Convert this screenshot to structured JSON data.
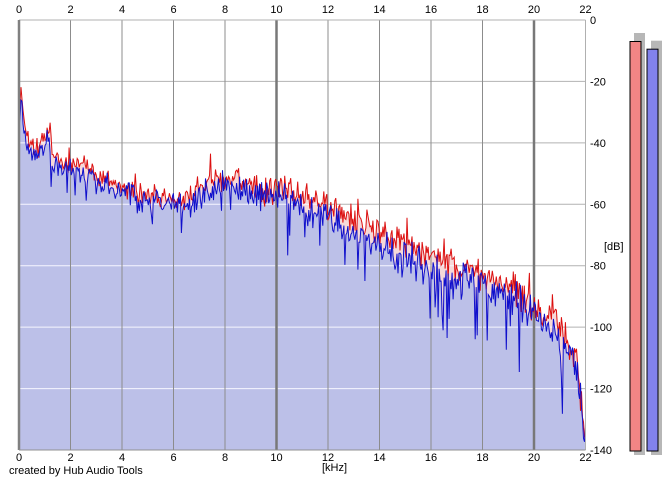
{
  "window": {
    "creator_text": "created by Hub Audio Tools"
  },
  "chart_data": {
    "type": "area",
    "title": "",
    "xlabel": "[kHz]",
    "ylabel": "[dB]",
    "xlim": [
      0,
      22
    ],
    "ylim": [
      -140,
      0
    ],
    "x_ticks": [
      0,
      2,
      4,
      6,
      8,
      10,
      12,
      14,
      16,
      18,
      20,
      22
    ],
    "x_major_ticks": [
      0,
      10,
      20
    ],
    "y_ticks": [
      0,
      -20,
      -40,
      -60,
      -80,
      -100,
      -120,
      -140
    ],
    "grid": true,
    "legend": "none",
    "points_count": 566,
    "series": [
      {
        "name": "spectrum-left-channel",
        "line_color": "#dc1010",
        "fill_color": "#f6d9d9",
        "jitter_db": 5.5,
        "noise_seed": 21,
        "envelope_points_khz_db": [
          [
            0.0,
            -30
          ],
          [
            0.08,
            -22.5
          ],
          [
            0.2,
            -33
          ],
          [
            0.4,
            -40
          ],
          [
            0.7,
            -43
          ],
          [
            0.9,
            -39
          ],
          [
            1.1,
            -36
          ],
          [
            1.3,
            -44
          ],
          [
            1.7,
            -46
          ],
          [
            2.0,
            -48
          ],
          [
            2.6,
            -47
          ],
          [
            3.2,
            -52
          ],
          [
            4.0,
            -54
          ],
          [
            4.8,
            -57
          ],
          [
            5.4,
            -57
          ],
          [
            6.2,
            -59
          ],
          [
            7.0,
            -55
          ],
          [
            7.6,
            -52
          ],
          [
            8.3,
            -51
          ],
          [
            9.0,
            -54
          ],
          [
            9.6,
            -56
          ],
          [
            10.3,
            -55
          ],
          [
            10.9,
            -57
          ],
          [
            11.5,
            -59
          ],
          [
            12.0,
            -61
          ],
          [
            12.6,
            -63
          ],
          [
            13.3,
            -66
          ],
          [
            14.0,
            -69
          ],
          [
            14.7,
            -72
          ],
          [
            15.4,
            -74
          ],
          [
            16.0,
            -77
          ],
          [
            16.6,
            -79
          ],
          [
            17.3,
            -81
          ],
          [
            18.0,
            -83
          ],
          [
            18.6,
            -85
          ],
          [
            19.2,
            -88
          ],
          [
            19.8,
            -92
          ],
          [
            20.4,
            -96
          ],
          [
            20.9,
            -99
          ],
          [
            21.3,
            -104
          ],
          [
            21.6,
            -111
          ],
          [
            21.8,
            -121
          ],
          [
            21.95,
            -133
          ],
          [
            22.0,
            -135
          ]
        ]
      },
      {
        "name": "spectrum-right-channel",
        "line_color": "#1010cc",
        "fill_color": "#bcc0e8",
        "jitter_db": 6.5,
        "noise_seed": 77,
        "envelope_points_khz_db": [
          [
            0.0,
            -33
          ],
          [
            0.08,
            -26
          ],
          [
            0.2,
            -35
          ],
          [
            0.4,
            -42
          ],
          [
            0.7,
            -45
          ],
          [
            0.9,
            -41
          ],
          [
            1.1,
            -38
          ],
          [
            1.3,
            -46
          ],
          [
            1.7,
            -48
          ],
          [
            2.0,
            -50
          ],
          [
            2.6,
            -49
          ],
          [
            3.2,
            -54
          ],
          [
            4.0,
            -56
          ],
          [
            4.8,
            -59
          ],
          [
            5.4,
            -59
          ],
          [
            6.2,
            -61
          ],
          [
            7.0,
            -57
          ],
          [
            7.6,
            -55
          ],
          [
            8.3,
            -54
          ],
          [
            9.0,
            -56
          ],
          [
            9.6,
            -58
          ],
          [
            10.3,
            -58
          ],
          [
            10.9,
            -60
          ],
          [
            11.5,
            -63
          ],
          [
            12.0,
            -65
          ],
          [
            12.6,
            -68
          ],
          [
            13.3,
            -71
          ],
          [
            14.0,
            -74
          ],
          [
            14.7,
            -77
          ],
          [
            15.4,
            -79
          ],
          [
            16.0,
            -82
          ],
          [
            16.6,
            -84
          ],
          [
            17.3,
            -85
          ],
          [
            18.0,
            -87
          ],
          [
            18.6,
            -88
          ],
          [
            19.2,
            -91
          ],
          [
            19.8,
            -95
          ],
          [
            20.4,
            -99
          ],
          [
            20.9,
            -102
          ],
          [
            21.3,
            -107
          ],
          [
            21.6,
            -114
          ],
          [
            21.8,
            -125
          ],
          [
            21.95,
            -137
          ],
          [
            22.0,
            -138
          ]
        ]
      }
    ]
  },
  "meters": {
    "range_db": [
      0,
      -140
    ],
    "bars": [
      {
        "name": "level-meter-left",
        "fill_color": "#f28585",
        "value_db": -7
      },
      {
        "name": "level-meter-right",
        "fill_color": "#8282ec",
        "value_db": -9.5
      }
    ],
    "shadow_color": "#b7b7b7"
  },
  "colors": {
    "background": "#ffffff",
    "grid_vertical": "#8c8c8c",
    "grid_vertical_major": "#787878",
    "grid_horizontal": "#b2b2b2",
    "grid_on_fill": "#f6f6ff",
    "plot_border_left": "#808080",
    "plot_border_light": "#b0b0b0",
    "plot_border_bottom": "#909090"
  }
}
